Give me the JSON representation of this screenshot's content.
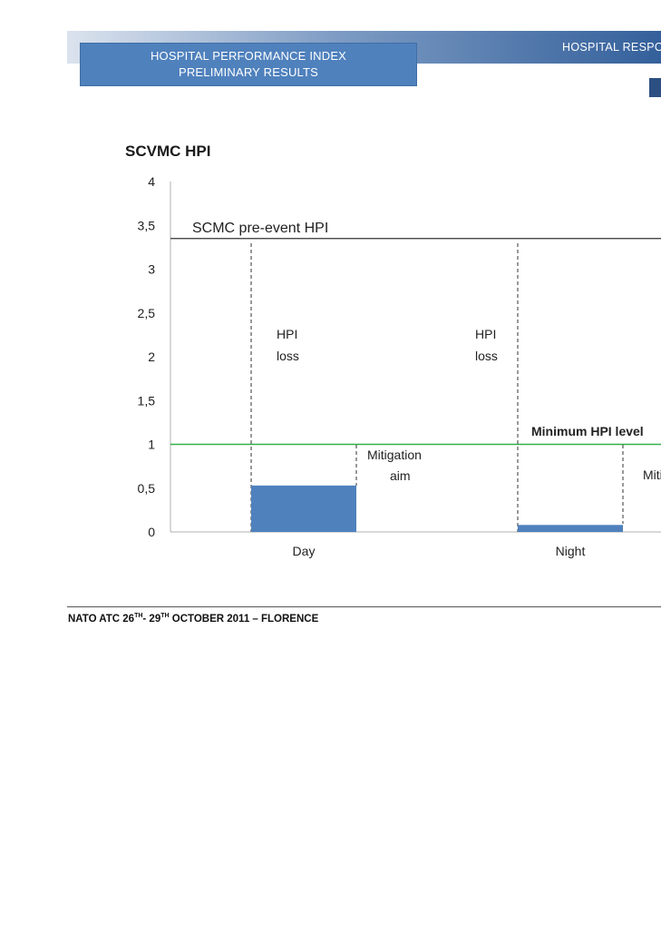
{
  "header": {
    "title_line1": "HOSPITAL PERFORMANCE INDEX",
    "title_line2": "PRELIMINARY RESULTS",
    "right_label": "HOSPITAL RESPO"
  },
  "chart_data": {
    "type": "bar",
    "title": "SCVMC HPI",
    "categories": [
      "Day",
      "Night"
    ],
    "values": [
      0.53,
      0.08
    ],
    "bar_color": "#4f81bd",
    "ylim": [
      0,
      4
    ],
    "yticks": [
      "0",
      "0,5",
      "1",
      "1,5",
      "2",
      "2,5",
      "3",
      "3,5",
      "4"
    ],
    "reference_lines": [
      {
        "label": "SCMC pre-event HPI",
        "value": 3.35,
        "color": "#333333"
      },
      {
        "label": "Minimum HPI level",
        "value": 1,
        "color": "#33b04a"
      }
    ],
    "annotations": [
      {
        "label_line1": "HPI",
        "label_line2": "loss"
      },
      {
        "label_line1": "Mitigation",
        "label_line2": "aim"
      },
      {
        "label_line1": "HPI",
        "label_line2": "loss"
      },
      {
        "label_line1": "Miti",
        "label_line2": ""
      }
    ],
    "grid": false
  },
  "footer": {
    "prefix": "NATO ATC  26",
    "sup1": "TH",
    "middle": "- 29",
    "sup2": "TH",
    "suffix": "  OCTOBER 2011 – FLORENCE"
  }
}
